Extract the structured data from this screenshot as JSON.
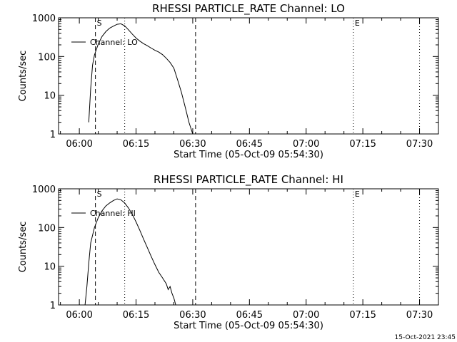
{
  "chart_data": [
    {
      "type": "line",
      "title": "RHESSI PARTICLE_RATE Channel: LO",
      "xlabel": "Start Time (05-Oct-09 05:54:30)",
      "ylabel": "Counts/sec",
      "xlim": [
        "05:54:30",
        "07:35:00"
      ],
      "ylim": [
        1,
        1000
      ],
      "yscale": "log",
      "x_ticks": [
        "06:00",
        "06:15",
        "06:30",
        "06:45",
        "07:00",
        "07:15",
        "07:30"
      ],
      "y_ticks": [
        "1",
        "10",
        "100",
        "1000"
      ],
      "legend": "top-left",
      "grid": false,
      "series": [
        {
          "name": "Channel: LO",
          "x": [
            "06:02:30",
            "06:03:00",
            "06:03:30",
            "06:04:00",
            "06:05:00",
            "06:06:00",
            "06:07:00",
            "06:08:00",
            "06:09:00",
            "06:10:00",
            "06:11:00",
            "06:12:00",
            "06:13:00",
            "06:14:00",
            "06:15:00",
            "06:16:00",
            "06:17:00",
            "06:18:00",
            "06:19:00",
            "06:20:00",
            "06:21:00",
            "06:22:00",
            "06:23:00",
            "06:24:00",
            "06:25:00",
            "06:26:00",
            "06:27:00",
            "06:28:00",
            "06:29:00",
            "06:30:00"
          ],
          "values": [
            2,
            15,
            60,
            110,
            210,
            330,
            440,
            540,
            610,
            680,
            700,
            620,
            490,
            380,
            300,
            250,
            215,
            190,
            165,
            145,
            130,
            112,
            90,
            70,
            50,
            25,
            12,
            5,
            2,
            1
          ]
        }
      ]
    },
    {
      "type": "line",
      "title": "RHESSI PARTICLE_RATE Channel: HI",
      "xlabel": "Start Time (05-Oct-09 05:54:30)",
      "ylabel": "Counts/sec",
      "xlim": [
        "05:54:30",
        "07:35:00"
      ],
      "ylim": [
        1,
        1000
      ],
      "yscale": "log",
      "x_ticks": [
        "06:00",
        "06:15",
        "06:30",
        "06:45",
        "07:00",
        "07:15",
        "07:30"
      ],
      "y_ticks": [
        "1",
        "10",
        "100",
        "1000"
      ],
      "legend": "top-left",
      "grid": false,
      "series": [
        {
          "name": "Channel: HI",
          "x": [
            "06:01:30",
            "06:02:00",
            "06:02:30",
            "06:03:00",
            "06:04:00",
            "06:05:00",
            "06:06:00",
            "06:07:00",
            "06:08:00",
            "06:09:00",
            "06:10:00",
            "06:11:00",
            "06:12:00",
            "06:13:00",
            "06:14:00",
            "06:15:00",
            "06:16:00",
            "06:17:00",
            "06:18:00",
            "06:19:00",
            "06:20:00",
            "06:21:00",
            "06:22:00",
            "06:23:00",
            "06:23:30",
            "06:24:00",
            "06:24:30",
            "06:25:00",
            "06:25:30"
          ],
          "values": [
            1,
            3,
            12,
            40,
            100,
            180,
            270,
            360,
            430,
            500,
            550,
            520,
            430,
            320,
            220,
            140,
            85,
            50,
            30,
            18,
            11,
            7,
            5,
            3.5,
            2.5,
            3,
            2,
            1.5,
            1
          ]
        }
      ]
    }
  ],
  "markers": [
    {
      "label": "S",
      "time": "06:04:15",
      "style": "dashed"
    },
    {
      "label": "",
      "time": "06:12:00",
      "style": "dotted"
    },
    {
      "label": "",
      "time": "06:30:45",
      "style": "dashed"
    },
    {
      "label": "E",
      "time": "07:12:30",
      "style": "dotted"
    },
    {
      "label": "",
      "time": "07:30:00",
      "style": "dotted"
    }
  ],
  "footer_timestamp": "15-Oct-2021 23:45"
}
